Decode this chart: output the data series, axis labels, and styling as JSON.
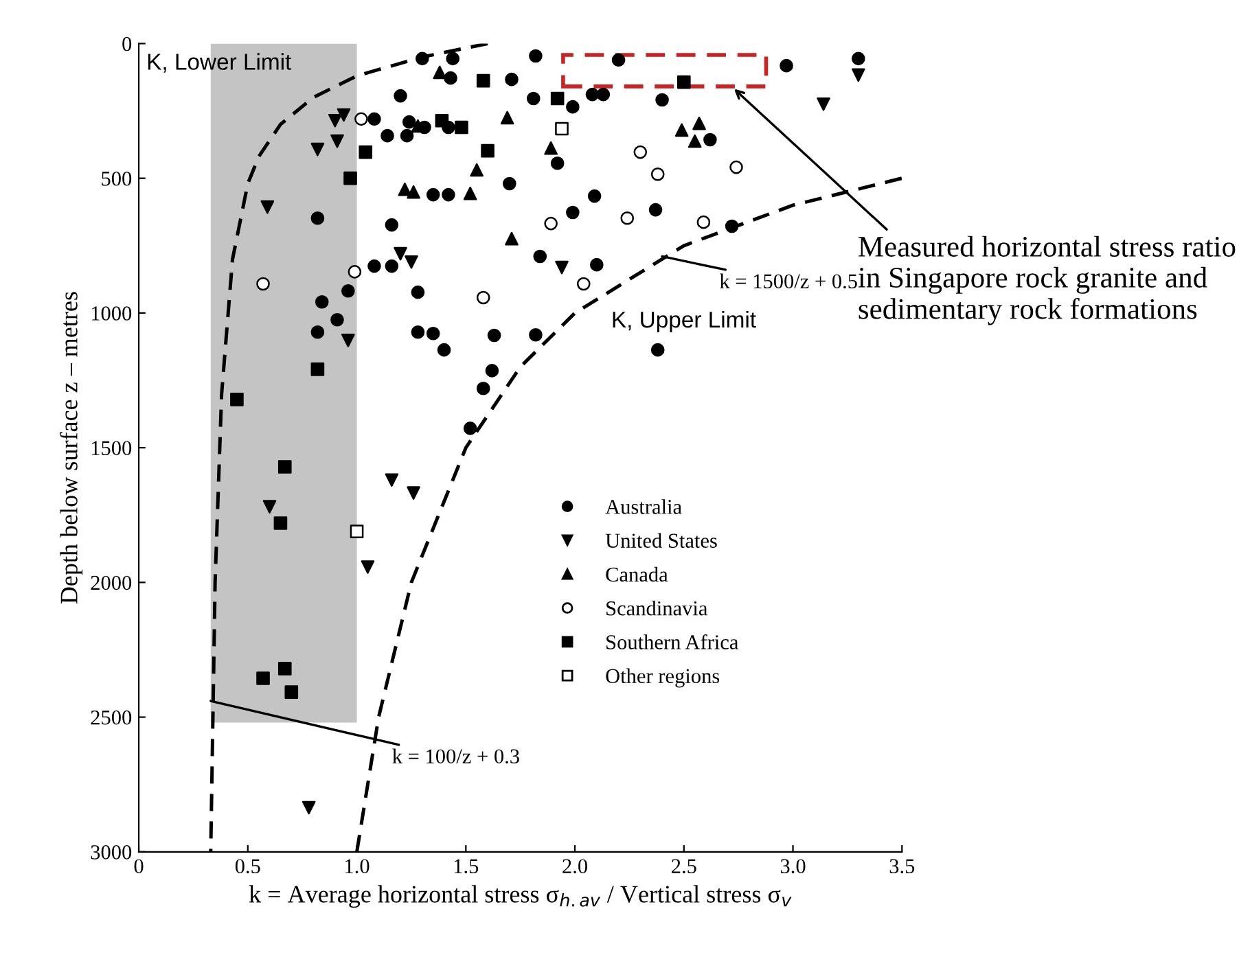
{
  "chart_data": {
    "type": "scatter",
    "xlabel": "k = Average horizontal stress σ$_{h.av}$ / Vertical stress σ$_{v}$",
    "ylabel": "Depth below surface z – metres",
    "xlim": [
      0,
      3.5
    ],
    "xticks": [
      0,
      0.5,
      {
        "value": 1.0,
        "label": "1.0"
      },
      1.5,
      {
        "value": 2.0,
        "label": "2.0"
      },
      2.5,
      {
        "value": 3.0,
        "label": "3.0"
      },
      3.5
    ],
    "ylim": [
      3000,
      0
    ],
    "yticks": [
      0,
      500,
      1000,
      1500,
      2000,
      2500,
      3000
    ],
    "grid": false,
    "legend": "bottom",
    "series": [
      {
        "type": "area",
        "color": "#c4c4c4",
        "x": [
          0.33,
          1.0
        ],
        "values": [
          2520,
          2520
        ]
      },
      {
        "type": "line",
        "color": "#000000",
        "line_style": "dashed",
        "marker": "none",
        "x": [
          1.6,
          1.3,
          1.0,
          0.8,
          0.65,
          0.55,
          0.5,
          0.43,
          0.38,
          0.35,
          0.33
        ],
        "values": [
          0,
          50,
          120,
          200,
          300,
          420,
          520,
          800,
          1300,
          2000,
          3000
        ]
      },
      {
        "type": "line",
        "color": "#000000",
        "line_style": "dashed",
        "marker": "none",
        "x": [
          1.0,
          1.1,
          1.25,
          1.5,
          1.75,
          2.0,
          2.5,
          3.0,
          3.5
        ],
        "values": [
          3000,
          2500,
          2000,
          1500,
          1200,
          1000,
          750,
          600,
          500
        ]
      },
      {
        "name": "Australia",
        "marker": "circle",
        "color": "#000000",
        "x": [
          1.3,
          1.44,
          1.43,
          1.2,
          1.08,
          1.24,
          1.14,
          1.23,
          1.31,
          1.42,
          1.35,
          1.42,
          0.82,
          1.16,
          1.08,
          1.16,
          0.96,
          1.28,
          0.84,
          0.91,
          0.82,
          1.28,
          1.35,
          1.4,
          1.62,
          1.58,
          1.52,
          1.82,
          2.2,
          2.97,
          1.71,
          1.81,
          1.99,
          2.08,
          2.13,
          2.4,
          2.62,
          1.92,
          1.7,
          2.09,
          1.99,
          2.37,
          2.72,
          1.84,
          2.1,
          1.63,
          1.82,
          2.38,
          3.3
        ],
        "values": [
          56,
          56,
          128,
          194,
          280,
          291,
          342,
          342,
          311,
          311,
          561,
          561,
          648,
          673,
          826,
          826,
          918,
          923,
          959,
          1025,
          1071,
          1071,
          1076,
          1137,
          1214,
          1280,
          1428,
          46,
          61,
          82,
          133,
          204,
          235,
          189,
          189,
          209,
          357,
          444,
          520,
          566,
          627,
          617,
          678,
          790,
          821,
          1083,
          1081,
          1137,
          56
        ]
      },
      {
        "name": "United States",
        "marker": "triangle_down",
        "color": "#000000",
        "x": [
          0.9,
          0.94,
          0.82,
          0.91,
          0.59,
          1.2,
          1.25,
          0.96,
          1.16,
          1.26,
          0.6,
          1.05,
          0.78,
          1.94,
          3.14,
          3.3
        ],
        "values": [
          286,
          265,
          393,
          362,
          607,
          780,
          811,
          1102,
          1620,
          1668,
          1719,
          1943,
          2836,
          831,
          225,
          117
        ]
      },
      {
        "name": "Canada",
        "marker": "triangle",
        "color": "#000000",
        "x": [
          1.38,
          1.28,
          1.55,
          1.22,
          1.26,
          1.52,
          1.69,
          2.49,
          2.57,
          2.55,
          1.89,
          1.71
        ],
        "values": [
          107,
          306,
          469,
          541,
          551,
          556,
          275,
          321,
          296,
          362,
          388,
          724
        ]
      },
      {
        "name": "Scandinavia",
        "marker": "circle",
        "color": "#ffffff",
        "x": [
          1.02,
          0.99,
          0.57,
          1.58,
          2.3,
          2.38,
          2.74,
          1.89,
          2.24,
          2.59,
          2.04
        ],
        "values": [
          280,
          847,
          892,
          943,
          403,
          485,
          459,
          668,
          648,
          663,
          892
        ]
      },
      {
        "name": "Southern Africa",
        "marker": "square",
        "color": "#000000",
        "x": [
          1.58,
          1.39,
          1.48,
          1.6,
          1.04,
          0.97,
          0.82,
          0.45,
          0.67,
          0.65,
          0.67,
          0.57,
          0.7,
          2.5,
          1.92
        ],
        "values": [
          138,
          286,
          311,
          398,
          403,
          500,
          1209,
          1321,
          1571,
          1780,
          2320,
          2356,
          2407,
          143,
          204
        ]
      },
      {
        "name": "Other regions",
        "marker": "square",
        "color": "#ffffff",
        "x": [
          1.0,
          1.94
        ],
        "values": [
          1811,
          316
        ]
      }
    ],
    "annotations": [
      "K, Lower Limit",
      "K, Upper Limit",
      {
        "text": "k = 1500/z + 0.5",
        "x": 2.4,
        "y": 790
      },
      {
        "text": "k = 100/z + 0.3",
        "x": 0.33,
        "y": 2440
      },
      "Measured horizontal stress ratio in Singapore rock granite and sedimentary rock formations"
    ]
  }
}
